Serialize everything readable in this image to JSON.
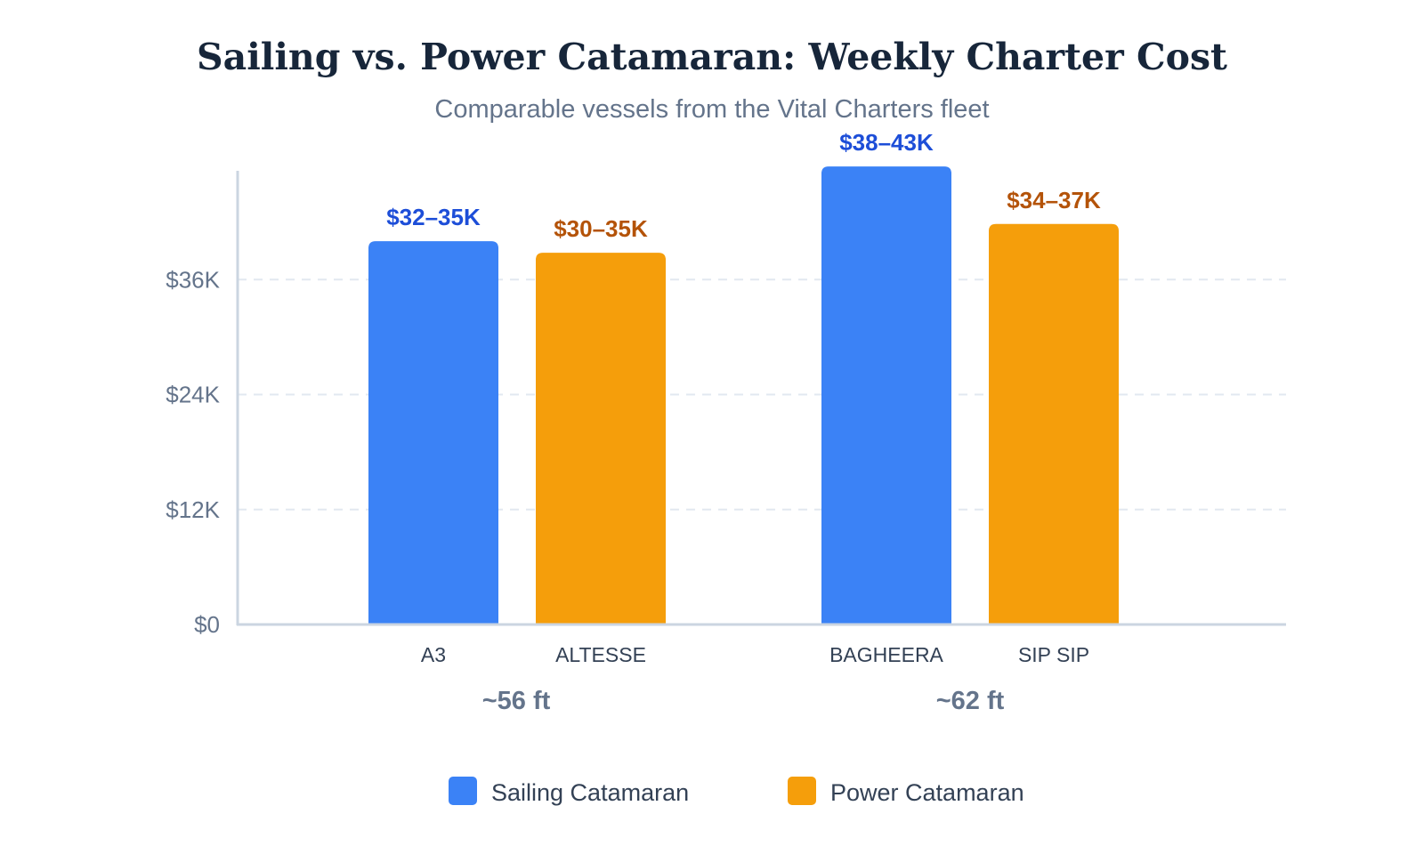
{
  "chart_data": {
    "type": "bar",
    "title": "Sailing vs. Power Catamaran: Weekly Charter Cost",
    "subtitle": "Comparable vessels from the Vital Charters fleet",
    "xlabel": "",
    "ylabel": "",
    "ylim": [
      0,
      48000
    ],
    "yticks": [
      {
        "value": 0,
        "label": "$0"
      },
      {
        "value": 12000,
        "label": "$12K"
      },
      {
        "value": 24000,
        "label": "$24K"
      },
      {
        "value": 36000,
        "label": "$36K"
      }
    ],
    "grid": true,
    "legend_position": "bottom",
    "groups": [
      {
        "label": "~56 ft",
        "categories": [
          "A3",
          "ALTESSE"
        ]
      },
      {
        "label": "~62 ft",
        "categories": [
          "BAGHEERA",
          "SIP SIP"
        ]
      }
    ],
    "categories": [
      "A3",
      "ALTESSE",
      "BAGHEERA",
      "SIP SIP"
    ],
    "bars": [
      {
        "category": "A3",
        "series": "Sailing Catamaran",
        "value": 40000,
        "range_label": "$32–35K"
      },
      {
        "category": "ALTESSE",
        "series": "Power Catamaran",
        "value": 38800,
        "range_label": "$30–35K"
      },
      {
        "category": "BAGHEERA",
        "series": "Sailing Catamaran",
        "value": 47800,
        "range_label": "$38–43K"
      },
      {
        "category": "SIP SIP",
        "series": "Power Catamaran",
        "value": 41800,
        "range_label": "$34–37K"
      }
    ],
    "series": [
      {
        "name": "Sailing Catamaran",
        "color": "#3b82f6",
        "label_color": "#1d4ed8"
      },
      {
        "name": "Power Catamaran",
        "color": "#f59e0b",
        "label_color": "#b45309"
      }
    ]
  }
}
